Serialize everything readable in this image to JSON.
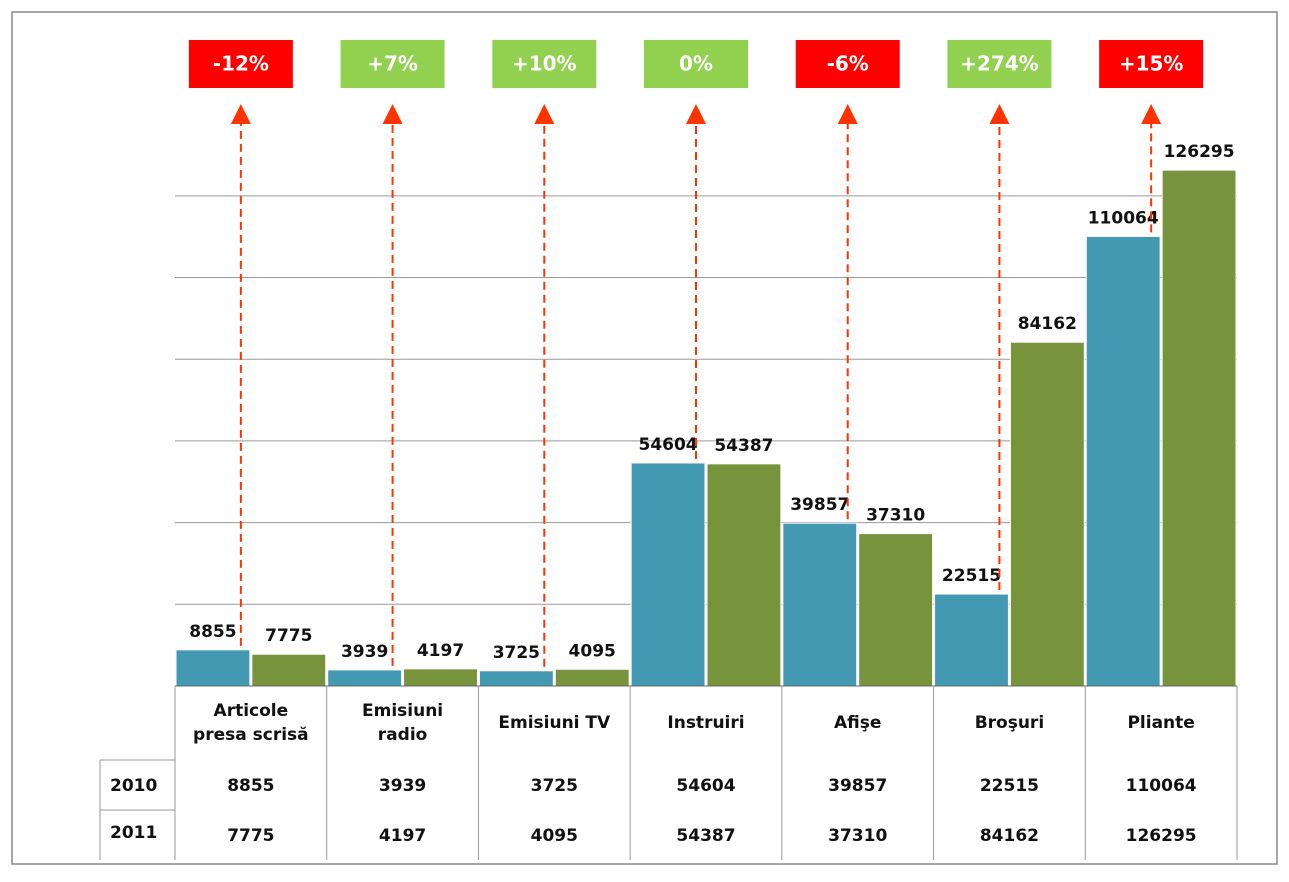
{
  "chart_data": {
    "type": "bar",
    "categories": [
      "Articole presa scrisă",
      "Emisiuni radio",
      "Emisiuni TV",
      "Instruiri",
      "Afişe",
      "Broşuri",
      "Pliante"
    ],
    "series": [
      {
        "name": "2010",
        "color": "#4399b1",
        "values": [
          8855,
          3939,
          3725,
          54604,
          39857,
          22515,
          110064
        ]
      },
      {
        "name": "2011",
        "color": "#77933c",
        "values": [
          7775,
          4197,
          4095,
          54387,
          37310,
          84162,
          126295
        ]
      }
    ],
    "changes": [
      {
        "label": "-12%",
        "color": "#ff0000"
      },
      {
        "label": "+7%",
        "color": "#92d050"
      },
      {
        "label": "+10%",
        "color": "#92d050"
      },
      {
        "label": "0%",
        "color": "#92d050"
      },
      {
        "label": "-6%",
        "color": "#ff0000"
      },
      {
        "label": "+274%",
        "color": "#92d050"
      },
      {
        "label": "+15%",
        "color": "#ff0000"
      }
    ],
    "ylim": [
      0,
      130000
    ],
    "yticks": [
      0,
      20000,
      40000,
      60000,
      80000,
      100000,
      120000
    ],
    "grid": true
  }
}
